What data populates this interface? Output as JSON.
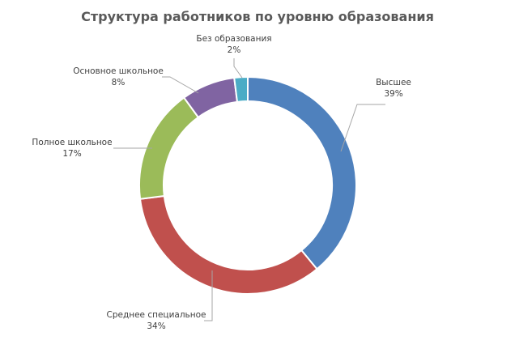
{
  "chart_data": {
    "type": "pie",
    "variant": "doughnut",
    "title": "Структура работников по уровню образования",
    "legend": "none",
    "slices": [
      {
        "name": "Высшее",
        "value": 39,
        "value_label": "39%",
        "color": "#4f81bd"
      },
      {
        "name": "Среднее специальное",
        "value": 34,
        "value_label": "34%",
        "color": "#c0504d"
      },
      {
        "name": "Полное школьное",
        "value": 17,
        "value_label": "17%",
        "color": "#9bbb59"
      },
      {
        "name": "Основное школьное",
        "value": 8,
        "value_label": "8%",
        "color": "#8064a2"
      },
      {
        "name": "Без образования",
        "value": 2,
        "value_label": "2%",
        "color": "#4bacc6"
      }
    ]
  }
}
